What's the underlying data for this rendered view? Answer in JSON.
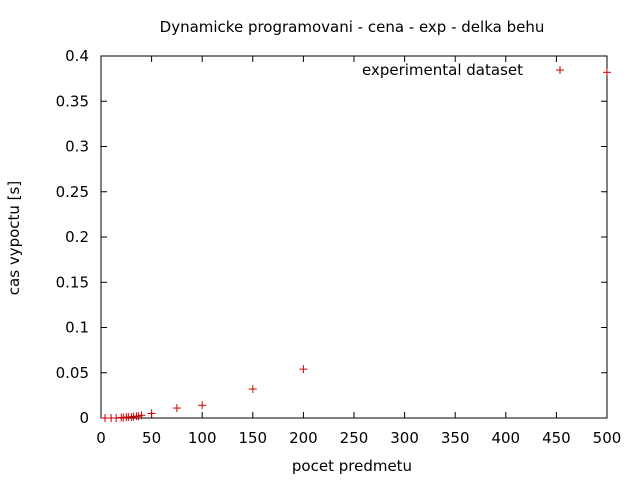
{
  "chart_data": {
    "type": "scatter",
    "title": "Dynamicke programovani - cena - exp - delka behu",
    "xlabel": "pocet predmetu",
    "ylabel": "cas vypoctu [s]",
    "xlim": [
      0,
      500
    ],
    "ylim": [
      0,
      0.4
    ],
    "xticks": [
      {
        "value": 0,
        "label": "0"
      },
      {
        "value": 50,
        "label": "50"
      },
      {
        "value": 100,
        "label": "100"
      },
      {
        "value": 150,
        "label": "150"
      },
      {
        "value": 200,
        "label": "200"
      },
      {
        "value": 250,
        "label": "250"
      },
      {
        "value": 300,
        "label": "300"
      },
      {
        "value": 350,
        "label": "350"
      },
      {
        "value": 400,
        "label": "400"
      },
      {
        "value": 450,
        "label": "450"
      },
      {
        "value": 500,
        "label": "500"
      }
    ],
    "yticks": [
      {
        "value": 0,
        "label": "0"
      },
      {
        "value": 0.05,
        "label": "0.05"
      },
      {
        "value": 0.1,
        "label": "0.1"
      },
      {
        "value": 0.15,
        "label": "0.15"
      },
      {
        "value": 0.2,
        "label": "0.2"
      },
      {
        "value": 0.25,
        "label": "0.25"
      },
      {
        "value": 0.3,
        "label": "0.3"
      },
      {
        "value": 0.35,
        "label": "0.35"
      },
      {
        "value": 0.4,
        "label": "0.4"
      }
    ],
    "grid": false,
    "legend_position": "top-right",
    "series": [
      {
        "name": "experimental dataset",
        "color": "#cc0000",
        "marker": "plus",
        "x": [
          4,
          10,
          15,
          20,
          22,
          25,
          27,
          30,
          32,
          35,
          37,
          40,
          50,
          75,
          100,
          150,
          200,
          500
        ],
        "y": [
          0.0,
          0.0,
          0.0,
          0.0005,
          0.0005,
          0.001,
          0.001,
          0.001,
          0.0015,
          0.002,
          0.002,
          0.003,
          0.005,
          0.011,
          0.014,
          0.032,
          0.054,
          0.382
        ]
      }
    ]
  }
}
